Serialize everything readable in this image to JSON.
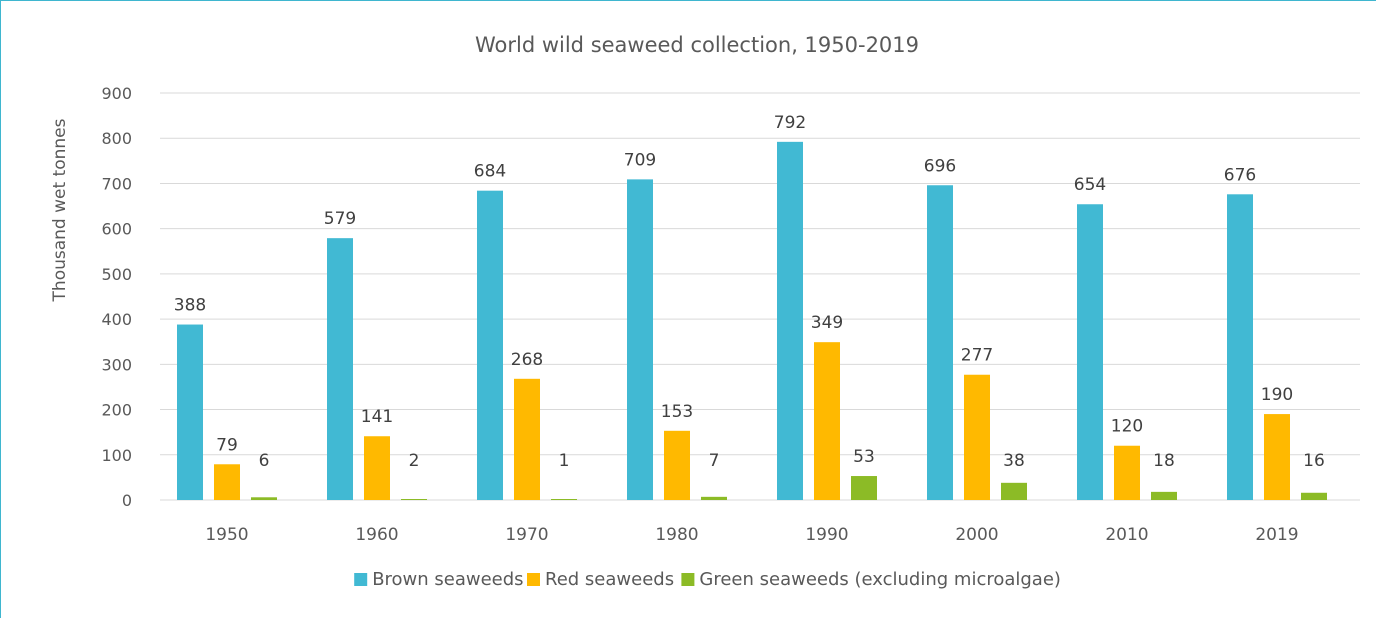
{
  "chart_data": {
    "type": "bar",
    "title": "World wild seaweed collection, 1950-2019",
    "xlabel": "",
    "ylabel": "Thousand wet tonnes",
    "ylim": [
      0,
      900
    ],
    "yticks": [
      0,
      100,
      200,
      300,
      400,
      500,
      600,
      700,
      800,
      900
    ],
    "grid": true,
    "legend": "bottom",
    "categories": [
      "1950",
      "1960",
      "1970",
      "1980",
      "1990",
      "2000",
      "2010",
      "2019"
    ],
    "series": [
      {
        "name": "Brown seaweeds",
        "color": "#41b9d3",
        "values": [
          388,
          579,
          684,
          709,
          792,
          696,
          654,
          676
        ]
      },
      {
        "name": "Red seaweeds",
        "color": "#ffb900",
        "values": [
          79,
          141,
          268,
          153,
          349,
          277,
          120,
          190
        ]
      },
      {
        "name": "Green seaweeds (excluding microalgae)",
        "color": "#8cbb26",
        "values": [
          6,
          2,
          1,
          7,
          53,
          38,
          18,
          16
        ]
      }
    ]
  }
}
